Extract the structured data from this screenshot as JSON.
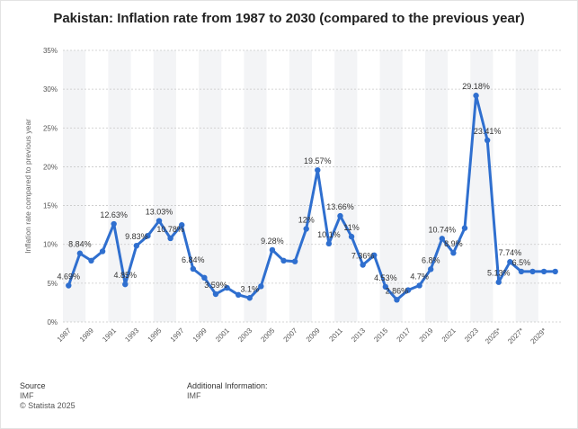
{
  "title": "Pakistan: Inflation rate from 1987 to 2030 (compared to the previous year)",
  "footer": {
    "source_heading": "Source",
    "source_value": "IMF",
    "copyright": "© Statista 2025",
    "additional_heading": "Additional Information:",
    "additional_value": "IMF"
  },
  "colors": {
    "line": "#2f6fcf",
    "band": "#f3f4f6",
    "grid": "#c8c8c8"
  },
  "chart_data": {
    "type": "line",
    "title": "Pakistan: Inflation rate from 1987 to 2030 (compared to the previous year)",
    "ylabel": "Inflation rate compared to previous year",
    "xlabel": "",
    "ylim": [
      0,
      35
    ],
    "yticks": [
      "0%",
      "5%",
      "10%",
      "15%",
      "20%",
      "25%",
      "30%",
      "35%"
    ],
    "xtick_labels": [
      "1987",
      "1989",
      "1991",
      "1993",
      "1995",
      "1997",
      "1999",
      "2001",
      "2003",
      "2005",
      "2007",
      "2009",
      "2011",
      "2013",
      "2015",
      "2017",
      "2019",
      "2021",
      "2023",
      "2025*",
      "2027*",
      "2029*"
    ],
    "grid": true,
    "legend": "none",
    "x": [
      1987,
      1988,
      1989,
      1990,
      1991,
      1992,
      1993,
      1994,
      1995,
      1996,
      1997,
      1998,
      1999,
      2000,
      2001,
      2002,
      2003,
      2004,
      2005,
      2006,
      2007,
      2008,
      2009,
      2010,
      2011,
      2012,
      2013,
      2014,
      2015,
      2016,
      2017,
      2018,
      2019,
      2020,
      2021,
      2022,
      2023,
      2024,
      2025,
      2026,
      2027,
      2028,
      2029,
      2030
    ],
    "series": [
      {
        "values": [
          4.69,
          8.84,
          7.9,
          9.1,
          12.63,
          4.85,
          9.83,
          11.1,
          13.03,
          10.78,
          12.5,
          6.84,
          5.7,
          3.59,
          4.4,
          3.5,
          3.1,
          4.6,
          9.28,
          7.9,
          7.8,
          12.0,
          19.57,
          10.1,
          13.66,
          11.0,
          7.36,
          8.6,
          4.53,
          2.86,
          4.1,
          4.7,
          6.8,
          10.74,
          8.9,
          12.1,
          29.18,
          23.41,
          5.13,
          7.74,
          6.5,
          6.5,
          6.5,
          6.5
        ]
      }
    ],
    "data_labels": [
      {
        "x": 1987,
        "text": "4.69%"
      },
      {
        "x": 1988,
        "text": "8.84%"
      },
      {
        "x": 1991,
        "text": "12.63%"
      },
      {
        "x": 1992,
        "text": "4.85%"
      },
      {
        "x": 1993,
        "text": "9.83%"
      },
      {
        "x": 1995,
        "text": "13.03%"
      },
      {
        "x": 1996,
        "text": "10.78%"
      },
      {
        "x": 1998,
        "text": "6.84%"
      },
      {
        "x": 2000,
        "text": "3.59%"
      },
      {
        "x": 2003,
        "text": "3.1%"
      },
      {
        "x": 2005,
        "text": "9.28%"
      },
      {
        "x": 2008,
        "text": "12%"
      },
      {
        "x": 2009,
        "text": "19.57%"
      },
      {
        "x": 2010,
        "text": "10.1%"
      },
      {
        "x": 2011,
        "text": "13.66%"
      },
      {
        "x": 2012,
        "text": "11%"
      },
      {
        "x": 2013,
        "text": "7.36%"
      },
      {
        "x": 2015,
        "text": "4.53%"
      },
      {
        "x": 2016,
        "text": "2.86%"
      },
      {
        "x": 2018,
        "text": "4.7%"
      },
      {
        "x": 2019,
        "text": "6.8%"
      },
      {
        "x": 2020,
        "text": "10.74%"
      },
      {
        "x": 2021,
        "text": "8.9%"
      },
      {
        "x": 2023,
        "text": "29.18%"
      },
      {
        "x": 2024,
        "text": "23.41%"
      },
      {
        "x": 2025,
        "text": "5.13%"
      },
      {
        "x": 2026,
        "text": "7.74%"
      },
      {
        "x": 2027,
        "text": "6.5%"
      }
    ]
  }
}
